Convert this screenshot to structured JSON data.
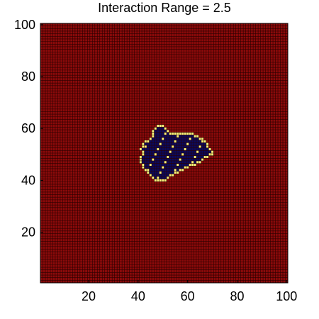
{
  "chart_data": {
    "type": "heatmap",
    "title": "Interaction Range = 2.5",
    "xlabel": "",
    "ylabel": "",
    "xlim": [
      1,
      100
    ],
    "ylim": [
      1,
      100
    ],
    "x_ticks": [
      20,
      40,
      60,
      80,
      100
    ],
    "y_ticks": [
      20,
      40,
      60,
      80,
      100
    ],
    "grid_size": [
      100,
      100
    ],
    "colormap": "hot-to-dark",
    "colors": {
      "background_state": "#8a0a0a",
      "gridline": "#2a0000",
      "interior_state": "#0a0a5e",
      "boundary_state": "#f7f37a"
    },
    "regions": [
      {
        "name": "cluster",
        "state": "interior_state",
        "boundary_state": "boundary_state",
        "rows": [
          {
            "y": 61,
            "x": [
              48,
              50
            ]
          },
          {
            "y": 60,
            "x": [
              47,
              51
            ]
          },
          {
            "y": 59,
            "x": [
              46,
              52
            ]
          },
          {
            "y": 58,
            "x": [
              46,
              62
            ]
          },
          {
            "y": 57,
            "x": [
              46,
              64
            ]
          },
          {
            "y": 56,
            "x": [
              45,
              66
            ]
          },
          {
            "y": 55,
            "x": [
              43,
              67
            ]
          },
          {
            "y": 54,
            "x": [
              42,
              68
            ]
          },
          {
            "y": 53,
            "x": [
              42,
              68
            ]
          },
          {
            "y": 52,
            "x": [
              41,
              69
            ]
          },
          {
            "y": 51,
            "x": [
              42,
              70
            ]
          },
          {
            "y": 50,
            "x": [
              42,
              70
            ]
          },
          {
            "y": 49,
            "x": [
              41,
              68
            ]
          },
          {
            "y": 48,
            "x": [
              41,
              66
            ]
          },
          {
            "y": 47,
            "x": [
              41,
              65
            ]
          },
          {
            "y": 46,
            "x": [
              42,
              63
            ]
          },
          {
            "y": 45,
            "x": [
              42,
              60
            ]
          },
          {
            "y": 44,
            "x": [
              43,
              58
            ]
          },
          {
            "y": 43,
            "x": [
              44,
              56
            ]
          },
          {
            "y": 42,
            "x": [
              45,
              54
            ]
          },
          {
            "y": 41,
            "x": [
              46,
              52
            ]
          },
          {
            "y": 40,
            "x": [
              47,
              51
            ]
          }
        ]
      }
    ]
  }
}
